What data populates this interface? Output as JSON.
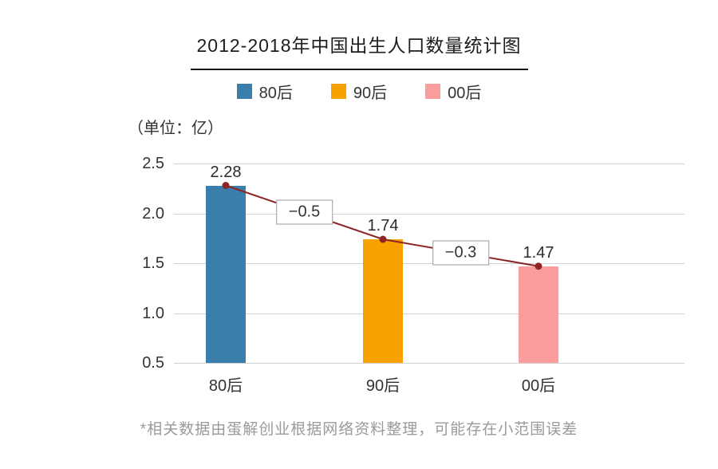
{
  "title": "2012-2018年中国出生人口数量统计图",
  "unit_label": "（单位：亿）",
  "footer": "*相关数据由蛋解创业根据网络资料整理，可能存在小范围误差",
  "legend": [
    {
      "label": "80后",
      "color": "#3a7fab"
    },
    {
      "label": "90后",
      "color": "#f8a200"
    },
    {
      "label": "00后",
      "color": "#fb9d9d"
    }
  ],
  "chart_data": {
    "type": "bar",
    "title": "2012-2018年中国出生人口数量统计图",
    "categories": [
      "80后",
      "90后",
      "00后"
    ],
    "values": [
      2.28,
      1.74,
      1.47
    ],
    "value_labels": [
      "2.28",
      "1.74",
      "1.47"
    ],
    "bar_colors": [
      "#3a7fab",
      "#f8a200",
      "#fb9d9d"
    ],
    "diff_labels": [
      "−0.5",
      "−0.3"
    ],
    "ytick_labels": [
      "2.5",
      "2.0",
      "1.5",
      "1.0",
      "0.5"
    ],
    "yticks": [
      2.5,
      2.0,
      1.5,
      1.0,
      0.5
    ],
    "ylim": [
      0.5,
      2.5
    ],
    "unit": "亿",
    "grid": true,
    "legend_position": "top",
    "line_color": "#8e2424",
    "grid_color": "#d2d2d2"
  }
}
